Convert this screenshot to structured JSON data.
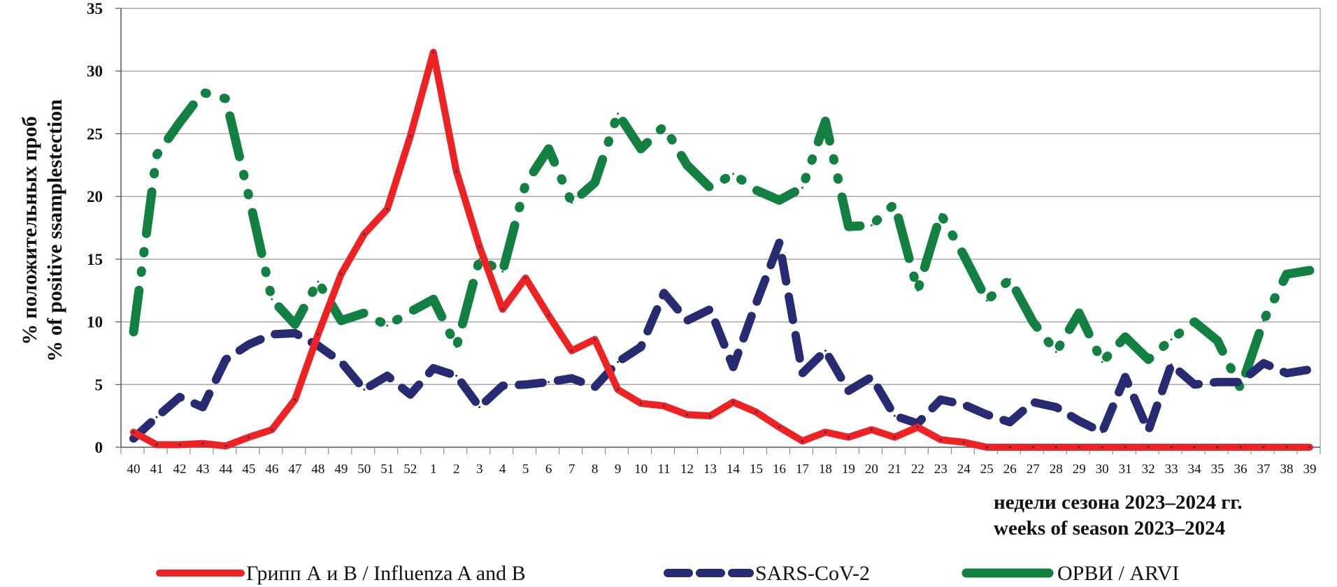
{
  "chart_data": {
    "type": "line",
    "title": "",
    "ylabel": [
      "% положительных проб",
      "% of positive ssamplestection"
    ],
    "xlabel": [
      "недели сезона 2023–2024 гг.",
      "weeks of season 2023–2024"
    ],
    "ylim": [
      0,
      35
    ],
    "yticks": [
      0,
      5,
      10,
      15,
      20,
      25,
      30,
      35
    ],
    "grid": true,
    "legend_position": "bottom",
    "categories": [
      "40",
      "41",
      "42",
      "43",
      "44",
      "45",
      "46",
      "47",
      "48",
      "49",
      "50",
      "51",
      "52",
      "1",
      "2",
      "3",
      "4",
      "5",
      "6",
      "7",
      "8",
      "9",
      "10",
      "11",
      "12",
      "13",
      "14",
      "15",
      "16",
      "17",
      "18",
      "19",
      "20",
      "21",
      "22",
      "23",
      "24",
      "25",
      "26",
      "27",
      "28",
      "29",
      "30",
      "31",
      "32",
      "33",
      "34",
      "35",
      "36",
      "37",
      "38",
      "39"
    ],
    "series": [
      {
        "name": "Грипп А и В / Influenza A and B",
        "color": "#ee2222",
        "style": "solid",
        "values": [
          1.2,
          0.2,
          0.2,
          0.3,
          0.1,
          0.8,
          1.4,
          3.8,
          9.0,
          13.8,
          17.0,
          19.0,
          24.8,
          31.5,
          22.0,
          16.0,
          11.0,
          13.5,
          10.5,
          7.7,
          8.6,
          4.6,
          3.5,
          3.3,
          2.6,
          2.5,
          3.6,
          2.8,
          1.6,
          0.5,
          1.2,
          0.8,
          1.4,
          0.8,
          1.6,
          0.6,
          0.4,
          0,
          0,
          0,
          0,
          0,
          0,
          0,
          0,
          0,
          0,
          0,
          0,
          0,
          0,
          0
        ]
      },
      {
        "name": "SARS-CoV-2",
        "color": "#262b72",
        "style": "dashed",
        "values": [
          0.7,
          2.4,
          4.0,
          3.2,
          7.0,
          8.2,
          9.0,
          9.1,
          8.1,
          6.8,
          4.6,
          5.7,
          4.2,
          6.3,
          5.7,
          3.2,
          4.9,
          5.0,
          5.2,
          5.5,
          4.8,
          6.8,
          8.0,
          12.3,
          10.1,
          11.0,
          6.4,
          11.5,
          16.3,
          5.9,
          7.7,
          4.5,
          5.6,
          2.5,
          1.9,
          3.8,
          3.4,
          2.6,
          2.0,
          3.6,
          3.2,
          2.1,
          1.2,
          5.6,
          1.3,
          6.6,
          5.0,
          5.2,
          5.2,
          6.7,
          5.9,
          6.2
        ]
      },
      {
        "name": "ОРВИ / ARVI",
        "color": "#118040",
        "style": "dash-dot-dot",
        "values": [
          9.2,
          23.3,
          25.9,
          28.3,
          27.8,
          20.0,
          11.8,
          9.8,
          13.2,
          10.1,
          10.7,
          9.7,
          10.8,
          11.8,
          8.0,
          15.0,
          14.0,
          21.0,
          23.8,
          19.5,
          21.1,
          26.6,
          23.8,
          25.6,
          22.5,
          20.7,
          21.8,
          20.5,
          19.7,
          20.7,
          26.0,
          17.6,
          17.7,
          19.4,
          12.5,
          18.6,
          15.3,
          11.7,
          13.4,
          10.0,
          7.6,
          10.7,
          6.8,
          8.8,
          7.0,
          8.6,
          10.0,
          8.5,
          4.7,
          10.1,
          13.8,
          14.1
        ]
      }
    ]
  }
}
